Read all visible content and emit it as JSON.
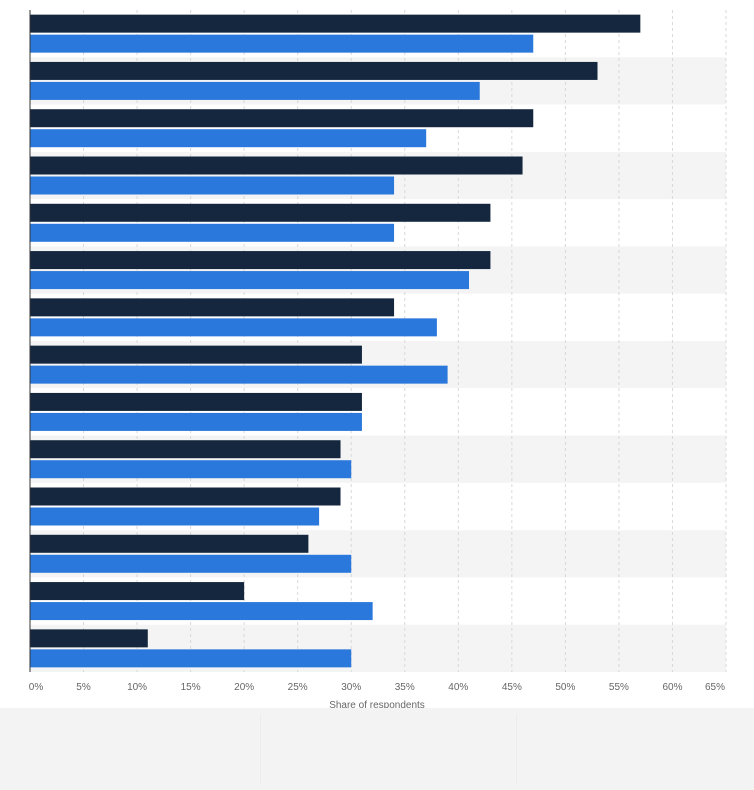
{
  "chart_data": {
    "type": "bar",
    "orientation": "horizontal",
    "categories": [
      "",
      "",
      "",
      "",
      "",
      "",
      "",
      "",
      "",
      "",
      "",
      "",
      "",
      ""
    ],
    "series": [
      {
        "values": [
          57,
          53,
          47,
          46,
          43,
          43,
          34,
          31,
          31,
          29,
          29,
          26,
          20,
          11
        ]
      },
      {
        "values": [
          47,
          42,
          37,
          34,
          34,
          41,
          38,
          39,
          31,
          30,
          27,
          30,
          32,
          30
        ]
      }
    ],
    "colors": [
      "#14273f",
      "#2a78dc"
    ],
    "xlim": [
      0,
      65
    ],
    "x_ticks": [
      "0%",
      "5%",
      "10%",
      "15%",
      "20%",
      "25%",
      "30%",
      "35%",
      "40%",
      "45%",
      "50%",
      "55%",
      "60%",
      "65%"
    ],
    "xlabel": "Share of respondents",
    "grid": true,
    "legend": "none"
  }
}
